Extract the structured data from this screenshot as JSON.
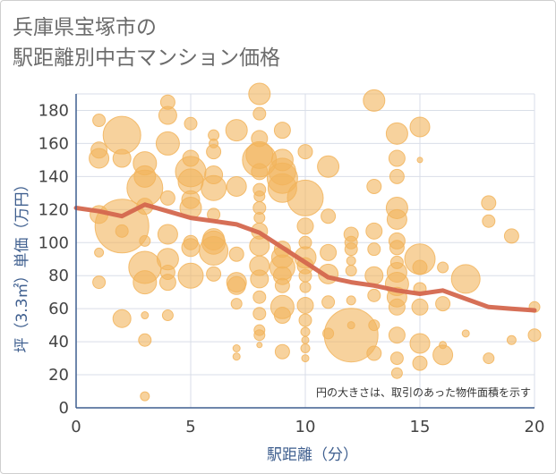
{
  "title_lines": [
    "兵庫県宝塚市の",
    "駅距離別中古マンション価格"
  ],
  "chart_data": {
    "type": "scatter",
    "title": "兵庫県宝塚市の駅距離別中古マンション価格",
    "xlabel": "駅距離（分）",
    "ylabel": "坪（3.3㎡）単価（万円）",
    "xlim": [
      0,
      20
    ],
    "ylim": [
      0,
      190
    ],
    "xticks": [
      0,
      5,
      10,
      15,
      20
    ],
    "yticks": [
      0,
      20,
      40,
      60,
      80,
      100,
      120,
      140,
      160,
      180
    ],
    "grid": true,
    "note": "円の大きさは、取引のあった物件面積を示す",
    "colors": {
      "bubble": "#f2b45c",
      "line": "#d4674e",
      "grid": "#d9dee8",
      "axis": "#3f5f8f"
    },
    "bubbles": [
      {
        "x": 1,
        "y": 174,
        "s": 7
      },
      {
        "x": 1,
        "y": 156,
        "s": 9
      },
      {
        "x": 1,
        "y": 151,
        "s": 11
      },
      {
        "x": 1,
        "y": 117,
        "s": 10
      },
      {
        "x": 1,
        "y": 94,
        "s": 5
      },
      {
        "x": 1,
        "y": 76,
        "s": 7
      },
      {
        "x": 2,
        "y": 165,
        "s": 21
      },
      {
        "x": 2,
        "y": 151,
        "s": 10
      },
      {
        "x": 2,
        "y": 110,
        "s": 30
      },
      {
        "x": 2,
        "y": 107,
        "s": 7
      },
      {
        "x": 2,
        "y": 54,
        "s": 10
      },
      {
        "x": 3,
        "y": 148,
        "s": 13
      },
      {
        "x": 3,
        "y": 140,
        "s": 12
      },
      {
        "x": 3,
        "y": 133,
        "s": 20
      },
      {
        "x": 3,
        "y": 122,
        "s": 9
      },
      {
        "x": 3,
        "y": 101,
        "s": 6
      },
      {
        "x": 3,
        "y": 85,
        "s": 18
      },
      {
        "x": 3,
        "y": 76,
        "s": 13
      },
      {
        "x": 3,
        "y": 56,
        "s": 4
      },
      {
        "x": 3,
        "y": 41,
        "s": 7
      },
      {
        "x": 3,
        "y": 7,
        "s": 5
      },
      {
        "x": 4,
        "y": 185,
        "s": 8
      },
      {
        "x": 4,
        "y": 177,
        "s": 10
      },
      {
        "x": 4,
        "y": 160,
        "s": 13
      },
      {
        "x": 4,
        "y": 127,
        "s": 8
      },
      {
        "x": 4,
        "y": 105,
        "s": 11
      },
      {
        "x": 4,
        "y": 90,
        "s": 12
      },
      {
        "x": 4,
        "y": 82,
        "s": 8
      },
      {
        "x": 4,
        "y": 76,
        "s": 9
      },
      {
        "x": 4,
        "y": 56,
        "s": 6
      },
      {
        "x": 5,
        "y": 172,
        "s": 7
      },
      {
        "x": 5,
        "y": 151,
        "s": 9
      },
      {
        "x": 5,
        "y": 143,
        "s": 17
      },
      {
        "x": 5,
        "y": 137,
        "s": 14
      },
      {
        "x": 5,
        "y": 126,
        "s": 10
      },
      {
        "x": 5,
        "y": 121,
        "s": 12
      },
      {
        "x": 5,
        "y": 100,
        "s": 8
      },
      {
        "x": 5,
        "y": 97,
        "s": 10
      },
      {
        "x": 5,
        "y": 80,
        "s": 14
      },
      {
        "x": 6,
        "y": 165,
        "s": 6
      },
      {
        "x": 6,
        "y": 160,
        "s": 5
      },
      {
        "x": 6,
        "y": 155,
        "s": 8
      },
      {
        "x": 6,
        "y": 141,
        "s": 10
      },
      {
        "x": 6,
        "y": 133,
        "s": 14
      },
      {
        "x": 6,
        "y": 117,
        "s": 7
      },
      {
        "x": 6,
        "y": 102,
        "s": 12
      },
      {
        "x": 6,
        "y": 100,
        "s": 13
      },
      {
        "x": 6,
        "y": 95,
        "s": 16
      },
      {
        "x": 6,
        "y": 81,
        "s": 8
      },
      {
        "x": 7,
        "y": 168,
        "s": 12
      },
      {
        "x": 7,
        "y": 134,
        "s": 11
      },
      {
        "x": 7,
        "y": 93,
        "s": 8
      },
      {
        "x": 7,
        "y": 76,
        "s": 11
      },
      {
        "x": 7,
        "y": 74,
        "s": 10
      },
      {
        "x": 7,
        "y": 63,
        "s": 6
      },
      {
        "x": 7,
        "y": 36,
        "s": 4
      },
      {
        "x": 7,
        "y": 31,
        "s": 4
      },
      {
        "x": 8,
        "y": 190,
        "s": 12
      },
      {
        "x": 8,
        "y": 178,
        "s": 7
      },
      {
        "x": 8,
        "y": 163,
        "s": 9
      },
      {
        "x": 8,
        "y": 153,
        "s": 15
      },
      {
        "x": 8,
        "y": 150,
        "s": 19
      },
      {
        "x": 8,
        "y": 143,
        "s": 9
      },
      {
        "x": 8,
        "y": 132,
        "s": 7
      },
      {
        "x": 8,
        "y": 128,
        "s": 6
      },
      {
        "x": 8,
        "y": 121,
        "s": 7
      },
      {
        "x": 8,
        "y": 115,
        "s": 6
      },
      {
        "x": 8,
        "y": 107,
        "s": 9
      },
      {
        "x": 8,
        "y": 98,
        "s": 11
      },
      {
        "x": 8,
        "y": 86,
        "s": 11
      },
      {
        "x": 8,
        "y": 78,
        "s": 10
      },
      {
        "x": 8,
        "y": 67,
        "s": 7
      },
      {
        "x": 8,
        "y": 57,
        "s": 7
      },
      {
        "x": 8,
        "y": 47,
        "s": 6
      },
      {
        "x": 8,
        "y": 44,
        "s": 6
      },
      {
        "x": 8,
        "y": 38,
        "s": 3
      },
      {
        "x": 9,
        "y": 168,
        "s": 9
      },
      {
        "x": 9,
        "y": 150,
        "s": 12
      },
      {
        "x": 9,
        "y": 143,
        "s": 15
      },
      {
        "x": 9,
        "y": 139,
        "s": 17
      },
      {
        "x": 9,
        "y": 133,
        "s": 16
      },
      {
        "x": 9,
        "y": 96,
        "s": 9
      },
      {
        "x": 9,
        "y": 91,
        "s": 12
      },
      {
        "x": 9,
        "y": 85,
        "s": 14
      },
      {
        "x": 9,
        "y": 80,
        "s": 10
      },
      {
        "x": 9,
        "y": 74,
        "s": 8
      },
      {
        "x": 9,
        "y": 61,
        "s": 13
      },
      {
        "x": 9,
        "y": 56,
        "s": 9
      },
      {
        "x": 9,
        "y": 34,
        "s": 8
      },
      {
        "x": 10,
        "y": 155,
        "s": 8
      },
      {
        "x": 10,
        "y": 127,
        "s": 20
      },
      {
        "x": 10,
        "y": 110,
        "s": 9
      },
      {
        "x": 10,
        "y": 100,
        "s": 7
      },
      {
        "x": 10,
        "y": 91,
        "s": 12
      },
      {
        "x": 10,
        "y": 86,
        "s": 9
      },
      {
        "x": 10,
        "y": 80,
        "s": 7
      },
      {
        "x": 10,
        "y": 73,
        "s": 6
      },
      {
        "x": 10,
        "y": 62,
        "s": 9
      },
      {
        "x": 10,
        "y": 53,
        "s": 7
      },
      {
        "x": 10,
        "y": 46,
        "s": 5
      },
      {
        "x": 10,
        "y": 41,
        "s": 4
      },
      {
        "x": 10,
        "y": 36,
        "s": 5
      },
      {
        "x": 10,
        "y": 30,
        "s": 4
      },
      {
        "x": 11,
        "y": 146,
        "s": 12
      },
      {
        "x": 11,
        "y": 116,
        "s": 8
      },
      {
        "x": 11,
        "y": 94,
        "s": 9
      },
      {
        "x": 11,
        "y": 81,
        "s": 11
      },
      {
        "x": 11,
        "y": 64,
        "s": 7
      },
      {
        "x": 11,
        "y": 45,
        "s": 6
      },
      {
        "x": 12,
        "y": 105,
        "s": 8
      },
      {
        "x": 12,
        "y": 100,
        "s": 7
      },
      {
        "x": 12,
        "y": 96,
        "s": 7
      },
      {
        "x": 12,
        "y": 89,
        "s": 5
      },
      {
        "x": 12,
        "y": 83,
        "s": 6
      },
      {
        "x": 12,
        "y": 65,
        "s": 5
      },
      {
        "x": 12,
        "y": 50,
        "s": 4
      },
      {
        "x": 12,
        "y": 44,
        "s": 30
      },
      {
        "x": 13,
        "y": 186,
        "s": 12
      },
      {
        "x": 13,
        "y": 134,
        "s": 8
      },
      {
        "x": 13,
        "y": 107,
        "s": 9
      },
      {
        "x": 13,
        "y": 96,
        "s": 7
      },
      {
        "x": 13,
        "y": 80,
        "s": 10
      },
      {
        "x": 13,
        "y": 68,
        "s": 7
      },
      {
        "x": 13,
        "y": 50,
        "s": 6
      },
      {
        "x": 13,
        "y": 33,
        "s": 8
      },
      {
        "x": 14,
        "y": 166,
        "s": 12
      },
      {
        "x": 14,
        "y": 151,
        "s": 9
      },
      {
        "x": 14,
        "y": 140,
        "s": 8
      },
      {
        "x": 14,
        "y": 121,
        "s": 12
      },
      {
        "x": 14,
        "y": 114,
        "s": 11
      },
      {
        "x": 14,
        "y": 101,
        "s": 9
      },
      {
        "x": 14,
        "y": 97,
        "s": 8
      },
      {
        "x": 14,
        "y": 88,
        "s": 7
      },
      {
        "x": 14,
        "y": 82,
        "s": 11
      },
      {
        "x": 14,
        "y": 75,
        "s": 13
      },
      {
        "x": 14,
        "y": 67,
        "s": 11
      },
      {
        "x": 14,
        "y": 61,
        "s": 9
      },
      {
        "x": 14,
        "y": 44,
        "s": 9
      },
      {
        "x": 14,
        "y": 30,
        "s": 7
      },
      {
        "x": 14,
        "y": 21,
        "s": 6
      },
      {
        "x": 15,
        "y": 170,
        "s": 11
      },
      {
        "x": 15,
        "y": 150,
        "s": 3
      },
      {
        "x": 15,
        "y": 90,
        "s": 17
      },
      {
        "x": 15,
        "y": 85,
        "s": 8
      },
      {
        "x": 15,
        "y": 72,
        "s": 7
      },
      {
        "x": 15,
        "y": 61,
        "s": 9
      },
      {
        "x": 15,
        "y": 39,
        "s": 11
      },
      {
        "x": 15,
        "y": 27,
        "s": 8
      },
      {
        "x": 16,
        "y": 85,
        "s": 6
      },
      {
        "x": 16,
        "y": 63,
        "s": 8
      },
      {
        "x": 16,
        "y": 38,
        "s": 4
      },
      {
        "x": 16,
        "y": 32,
        "s": 11
      },
      {
        "x": 17,
        "y": 78,
        "s": 16
      },
      {
        "x": 17,
        "y": 45,
        "s": 4
      },
      {
        "x": 18,
        "y": 124,
        "s": 8
      },
      {
        "x": 18,
        "y": 113,
        "s": 7
      },
      {
        "x": 18,
        "y": 30,
        "s": 6
      },
      {
        "x": 19,
        "y": 104,
        "s": 8
      },
      {
        "x": 19,
        "y": 41,
        "s": 5
      },
      {
        "x": 20,
        "y": 61,
        "s": 6
      },
      {
        "x": 20,
        "y": 44,
        "s": 7
      }
    ],
    "trend_line": {
      "x": [
        0,
        1,
        2,
        3,
        4,
        5,
        6,
        7,
        8,
        9,
        10,
        11,
        12,
        13,
        14,
        15,
        16,
        17,
        18,
        19,
        20
      ],
      "y": [
        121,
        119,
        116,
        123,
        119,
        115,
        113,
        111,
        106,
        97,
        88,
        79,
        76,
        74,
        71,
        69,
        71,
        66,
        61,
        60,
        59
      ]
    }
  }
}
